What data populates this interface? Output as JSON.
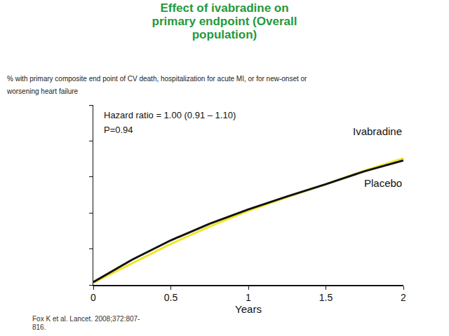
{
  "chart_data": {
    "type": "line",
    "title": "Effect of ivabradine on primary endpoint (Overall population)",
    "subtitle": "% with primary composite end point of CV death, hospitalization for acute MI, or for new-onset or worsening heart failure",
    "x_label": "Years",
    "annotations": [
      "Hazard ratio = 1.00 (0.91 – 1.10)",
      "P=0.94"
    ],
    "source": "Fox K et al. Lancet. 2008;372:807-816.",
    "x": [
      0,
      0.25,
      0.5,
      0.75,
      1,
      1.25,
      1.5,
      1.75,
      2
    ],
    "series": [
      {
        "name": "Ivabradine",
        "color": "#f2e620",
        "values": [
          0.3,
          3.0,
          5.7,
          8.1,
          10.3,
          12.2,
          14.0,
          15.9,
          17.6
        ]
      },
      {
        "name": "Placebo",
        "color": "#111111",
        "values": [
          0.4,
          3.5,
          6.2,
          8.5,
          10.5,
          12.3,
          14.0,
          15.8,
          17.3
        ]
      }
    ],
    "xlim": [
      0,
      2
    ],
    "xticks": [
      0,
      0.5,
      1,
      1.5,
      2
    ],
    "ylim": [
      0,
      25
    ],
    "yticks": [
      0,
      5,
      10,
      15,
      20,
      25
    ],
    "grid": false,
    "tick_labels": "x"
  }
}
